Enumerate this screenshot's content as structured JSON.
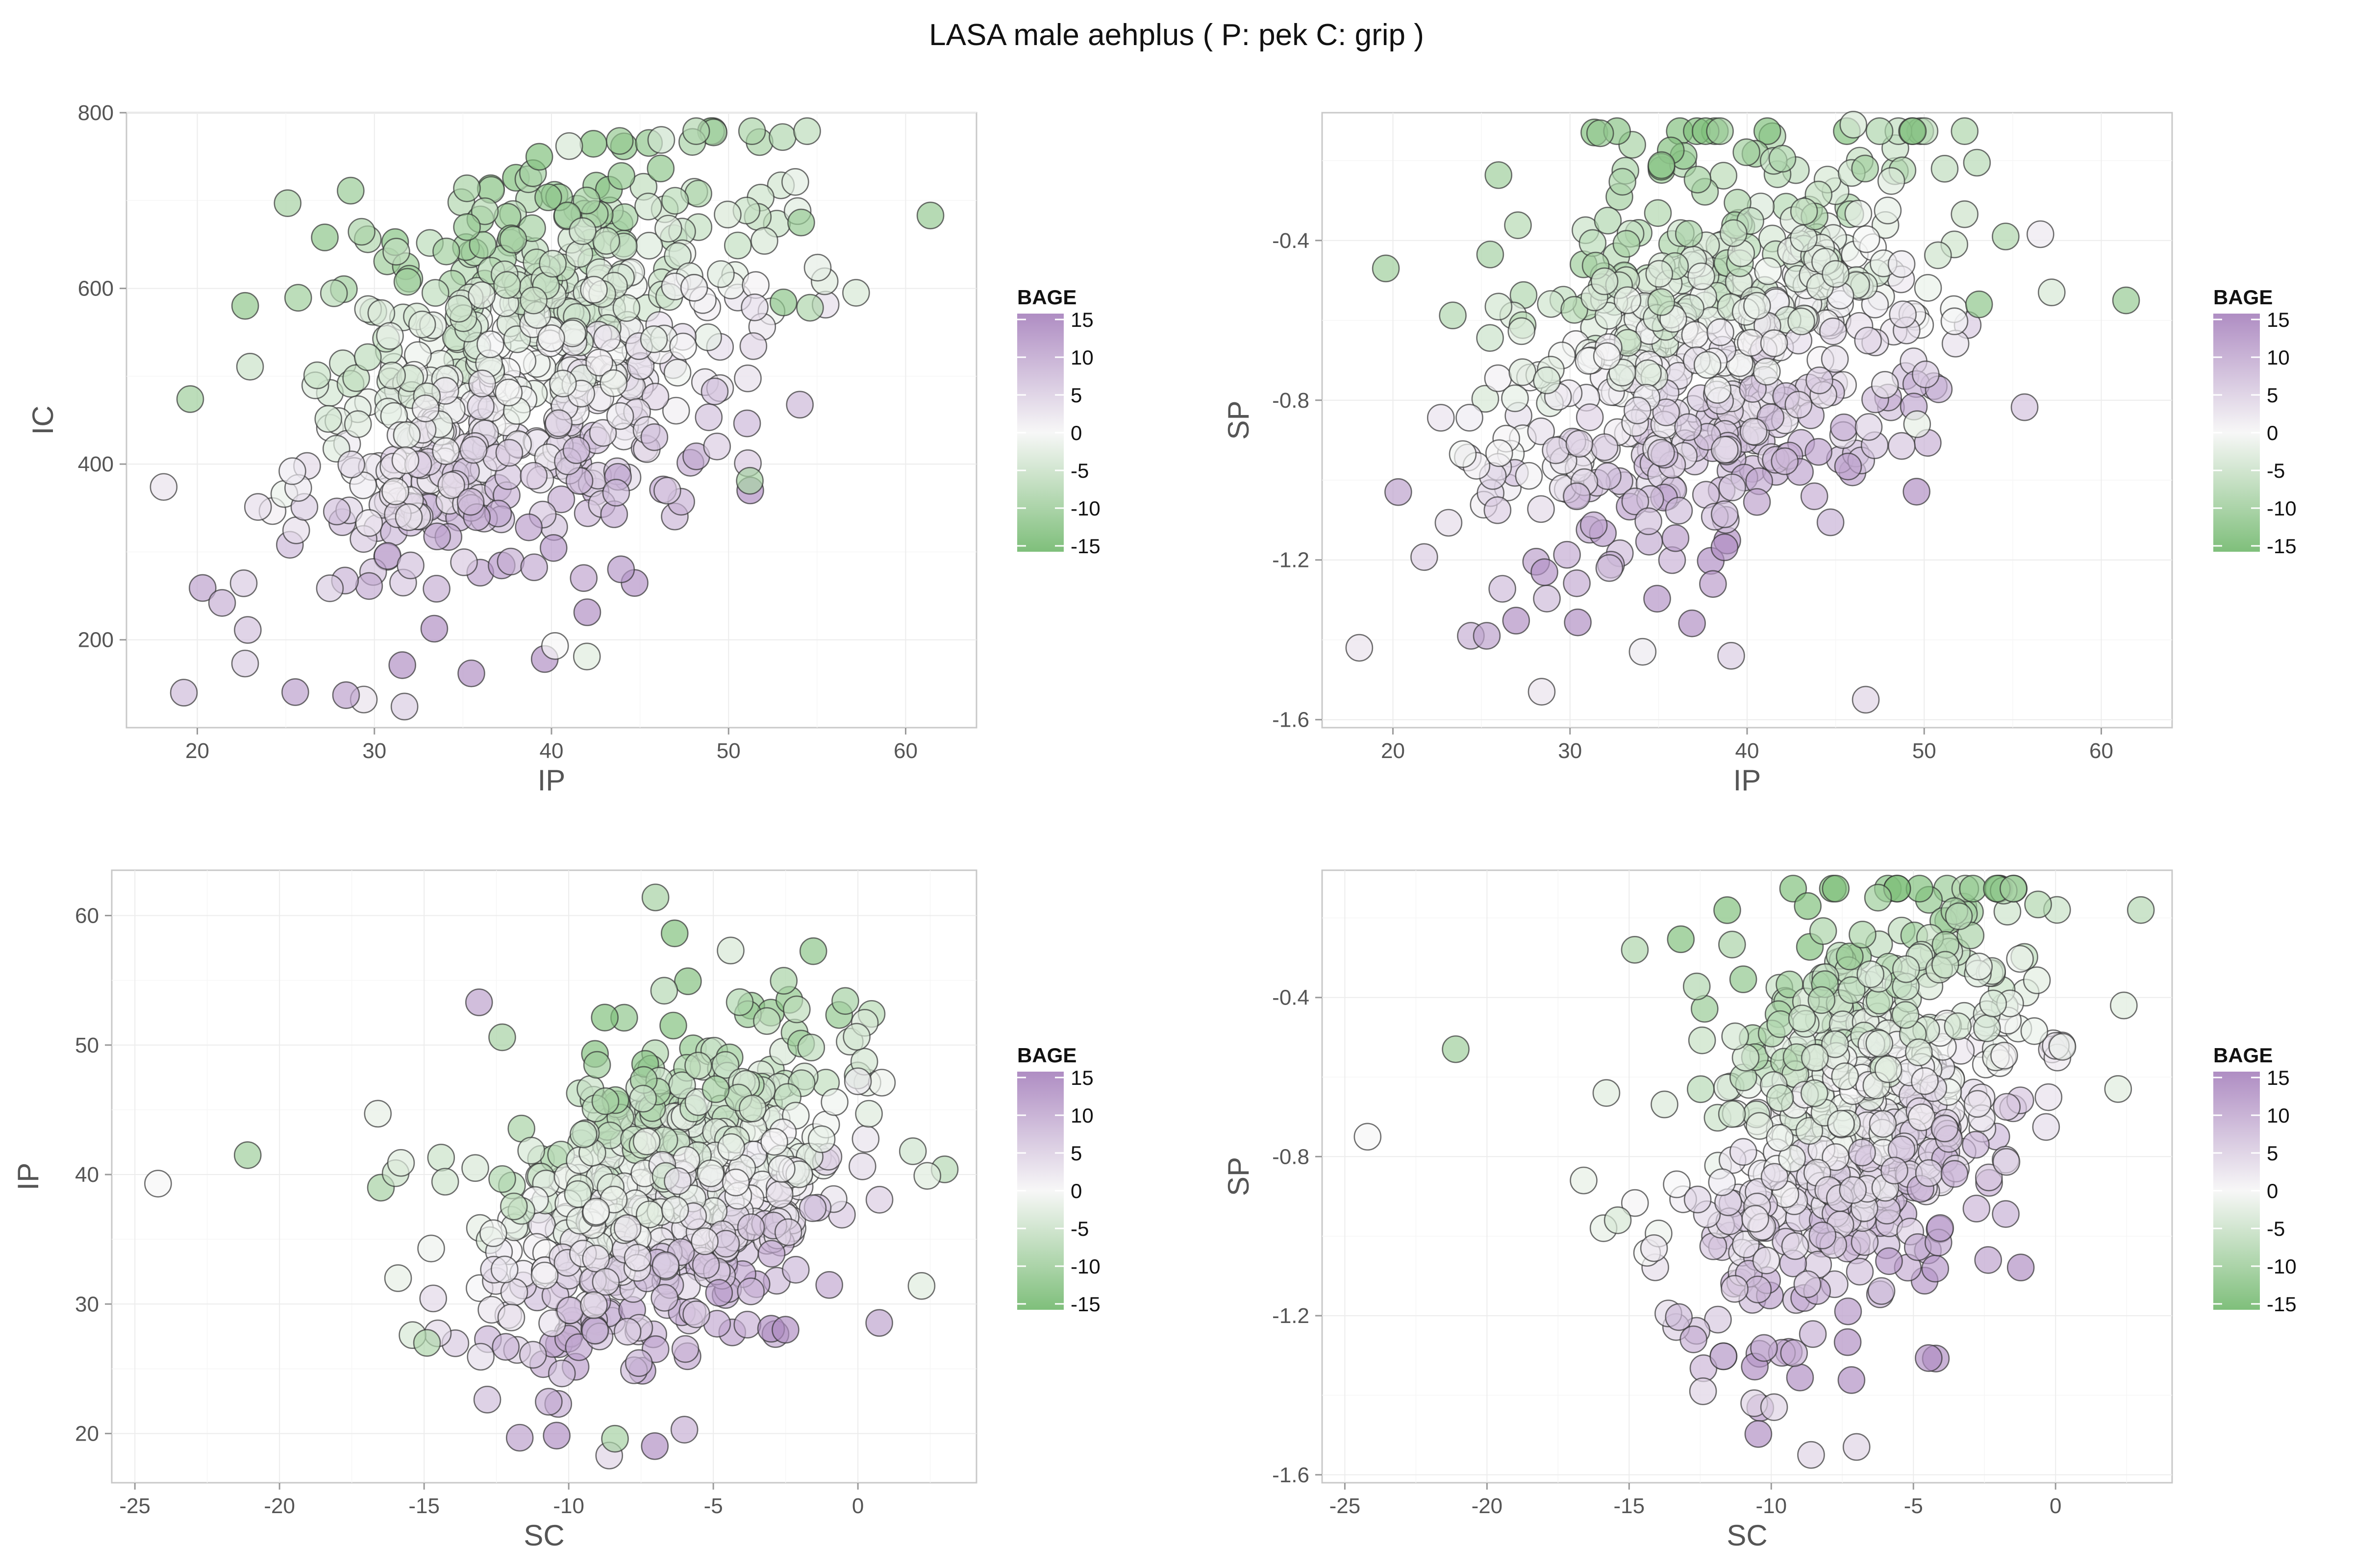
{
  "figure": {
    "title": "LASA  male  aehplus ( P: pek  C: grip )"
  },
  "colors": {
    "low": "#7fbf7b",
    "mid": "#f7f7f7",
    "high": "#af8dc3",
    "point_stroke": "#333333"
  },
  "legend": {
    "title": "BAGE",
    "range": [
      -15,
      15
    ],
    "labels": [
      "15",
      "10",
      "5",
      "0",
      "-5",
      "-10",
      "-15"
    ]
  },
  "chart_data": [
    {
      "type": "scatter",
      "xlabel": "IP",
      "ylabel": "IC",
      "xlim": [
        16,
        64
      ],
      "ylim": [
        100,
        800
      ],
      "xticks": [
        20,
        30,
        40,
        50,
        60
      ],
      "yticks": [
        200,
        400,
        600,
        800
      ],
      "xtick_labels": [
        "20",
        "30",
        "40",
        "50",
        "60"
      ],
      "ytick_labels": [
        "200",
        "400",
        "600",
        "800"
      ],
      "x_center": 38.5,
      "x_sd": 6.5,
      "y_center": 500,
      "y_sd": 120,
      "highlight_points": [
        {
          "x": 61.4,
          "y": 683,
          "c": -12
        },
        {
          "x": 57.2,
          "y": 595,
          "c": -4
        },
        {
          "x": 54.6,
          "y": 578,
          "c": -9
        },
        {
          "x": 54.1,
          "y": 675,
          "c": -12
        },
        {
          "x": 53.1,
          "y": 584,
          "c": -13
        },
        {
          "x": 51.2,
          "y": 381,
          "c": -10
        },
        {
          "x": 19.6,
          "y": 474,
          "c": -11
        },
        {
          "x": 18.1,
          "y": 374,
          "c": 3
        },
        {
          "x": 20.3,
          "y": 259,
          "c": 12
        },
        {
          "x": 21.4,
          "y": 242,
          "c": 10
        },
        {
          "x": 22.7,
          "y": 173,
          "c": 6
        },
        {
          "x": 25.1,
          "y": 697,
          "c": -10
        },
        {
          "x": 27.2,
          "y": 658,
          "c": -13
        },
        {
          "x": 29.4,
          "y": 132,
          "c": 3
        },
        {
          "x": 31.7,
          "y": 124,
          "c": 6
        },
        {
          "x": 28.4,
          "y": 137,
          "c": 12
        },
        {
          "x": 46.2,
          "y": 769,
          "c": -5
        },
        {
          "x": 41.0,
          "y": 762,
          "c": -4
        },
        {
          "x": 40.2,
          "y": 193,
          "c": 0
        },
        {
          "x": 42.0,
          "y": 181,
          "c": -3
        }
      ]
    },
    {
      "type": "scatter",
      "xlabel": "IP",
      "ylabel": "SP",
      "xlim": [
        16,
        64
      ],
      "ylim": [
        -1.62,
        -0.08
      ],
      "xticks": [
        20,
        30,
        40,
        50,
        60
      ],
      "yticks": [
        -1.6,
        -1.2,
        -0.8,
        -0.4
      ],
      "xtick_labels": [
        "20",
        "30",
        "40",
        "50",
        "60"
      ],
      "ytick_labels": [
        "-1.6",
        "-1.2",
        "-0.8",
        "-0.4"
      ],
      "x_center": 38.5,
      "x_sd": 6.5,
      "y_center": -0.66,
      "y_sd": 0.26,
      "highlight_points": [
        {
          "x": 61.4,
          "y": -0.55,
          "c": -12
        },
        {
          "x": 57.2,
          "y": -0.53,
          "c": -4
        },
        {
          "x": 54.6,
          "y": -0.39,
          "c": -9
        },
        {
          "x": 53.1,
          "y": -0.56,
          "c": -13
        },
        {
          "x": 18.1,
          "y": -1.42,
          "c": 3
        },
        {
          "x": 19.6,
          "y": -0.47,
          "c": -11
        },
        {
          "x": 20.3,
          "y": -1.03,
          "c": 12
        },
        {
          "x": 24.4,
          "y": -1.39,
          "c": 10
        },
        {
          "x": 25.3,
          "y": -1.39,
          "c": 12
        },
        {
          "x": 28.4,
          "y": -1.53,
          "c": 3
        },
        {
          "x": 34.1,
          "y": -1.43,
          "c": 2
        },
        {
          "x": 39.1,
          "y": -1.44,
          "c": 6
        },
        {
          "x": 46.7,
          "y": -1.55,
          "c": 5
        },
        {
          "x": 49.6,
          "y": -0.86,
          "c": -2
        },
        {
          "x": 46.0,
          "y": -0.11,
          "c": -4
        }
      ]
    },
    {
      "type": "scatter",
      "xlabel": "SC",
      "ylabel": "IP",
      "xlim": [
        -25.8,
        4.1
      ],
      "ylim": [
        16.2,
        63.5
      ],
      "xticks": [
        -25,
        -20,
        -15,
        -10,
        -5,
        0
      ],
      "yticks": [
        20,
        30,
        40,
        50,
        60
      ],
      "xtick_labels": [
        "-25",
        "-20",
        "-15",
        "-10",
        "-5",
        "0"
      ],
      "ytick_labels": [
        "20",
        "30",
        "40",
        "50",
        "60"
      ],
      "x_center": -6.6,
      "x_sd": 2.9,
      "y_center": 38.5,
      "y_sd": 6.5,
      "highlight_points": [
        {
          "x": -24.2,
          "y": 39.3,
          "c": 0
        },
        {
          "x": -21.1,
          "y": 41.5,
          "c": -11
        },
        {
          "x": -16.6,
          "y": 44.7,
          "c": -2
        },
        {
          "x": -15.8,
          "y": 40.9,
          "c": -3
        },
        {
          "x": -15.9,
          "y": 32.0,
          "c": -2
        },
        {
          "x": -15.4,
          "y": 27.6,
          "c": -4
        },
        {
          "x": -14.9,
          "y": 27.0,
          "c": -9
        },
        {
          "x": -13.1,
          "y": 53.3,
          "c": 12
        },
        {
          "x": -12.3,
          "y": 50.6,
          "c": -10
        },
        {
          "x": -7.0,
          "y": 61.4,
          "c": -10
        },
        {
          "x": -4.4,
          "y": 57.3,
          "c": -4
        },
        {
          "x": -6.7,
          "y": 54.2,
          "c": -8
        },
        {
          "x": -8.6,
          "y": 18.3,
          "c": 5
        },
        {
          "x": -8.4,
          "y": 19.6,
          "c": -10
        },
        {
          "x": -6.0,
          "y": 20.3,
          "c": 10
        },
        {
          "x": 2.2,
          "y": 31.4,
          "c": -3
        },
        {
          "x": 3.0,
          "y": 40.4,
          "c": -8
        },
        {
          "x": 2.4,
          "y": 39.9,
          "c": -3
        },
        {
          "x": 1.9,
          "y": 41.8,
          "c": -5
        },
        {
          "x": 0.0,
          "y": 47.2,
          "c": 2
        }
      ]
    },
    {
      "type": "scatter",
      "xlabel": "SC",
      "ylabel": "SP",
      "xlim": [
        -25.8,
        4.1
      ],
      "ylim": [
        -1.62,
        -0.08
      ],
      "xticks": [
        -25,
        -20,
        -15,
        -10,
        -5,
        0
      ],
      "yticks": [
        -1.6,
        -1.2,
        -0.8,
        -0.4
      ],
      "xtick_labels": [
        "-25",
        "-20",
        "-15",
        "-10",
        "-5",
        "0"
      ],
      "ytick_labels": [
        "-1.6",
        "-1.2",
        "-0.8",
        "-0.4"
      ],
      "x_center": -6.6,
      "x_sd": 2.9,
      "y_center": -0.66,
      "y_sd": 0.26,
      "highlight_points": [
        {
          "x": -24.2,
          "y": -0.75,
          "c": 0
        },
        {
          "x": -21.1,
          "y": -0.53,
          "c": -11
        },
        {
          "x": -15.8,
          "y": -0.64,
          "c": -3
        },
        {
          "x": -16.6,
          "y": -0.86,
          "c": -2
        },
        {
          "x": -15.9,
          "y": -0.98,
          "c": -2
        },
        {
          "x": -15.4,
          "y": -0.96,
          "c": -4
        },
        {
          "x": -14.8,
          "y": -0.28,
          "c": -9
        },
        {
          "x": 3.0,
          "y": -0.18,
          "c": -8
        },
        {
          "x": 2.4,
          "y": -0.42,
          "c": -3
        },
        {
          "x": 2.2,
          "y": -0.63,
          "c": -3
        },
        {
          "x": -12.4,
          "y": -1.39,
          "c": 5
        },
        {
          "x": -10.6,
          "y": -1.42,
          "c": 5
        },
        {
          "x": -9.9,
          "y": -1.43,
          "c": 5
        },
        {
          "x": -8.6,
          "y": -1.55,
          "c": 5
        },
        {
          "x": -7.0,
          "y": -1.53,
          "c": 5
        }
      ]
    }
  ]
}
